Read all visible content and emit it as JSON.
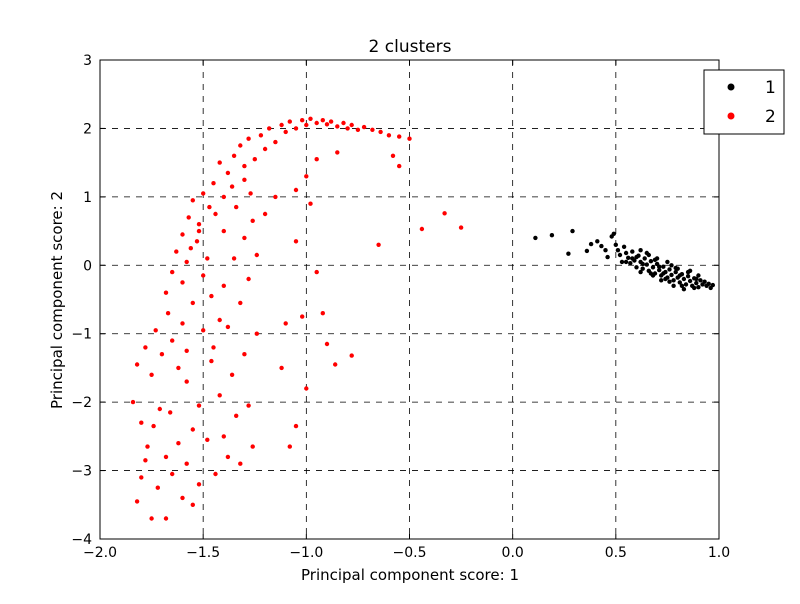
{
  "chart_data": {
    "type": "scatter",
    "title": "2 clusters",
    "xlabel": "Principal component score: 1",
    "ylabel": "Principal component score: 2",
    "xlim": [
      -2.0,
      1.0
    ],
    "ylim": [
      -4,
      3
    ],
    "x_ticks": [
      "−2.0",
      "−1.5",
      "−1.0",
      "−0.5",
      "0.0",
      "0.5",
      "1.0"
    ],
    "y_ticks": [
      "−4",
      "−3",
      "−2",
      "−1",
      "0",
      "1",
      "2",
      "3"
    ],
    "grid": true,
    "legend_position": "top-right",
    "series": [
      {
        "name": "1",
        "color": "#000000",
        "points": [
          [
            0.11,
            0.4
          ],
          [
            0.19,
            0.44
          ],
          [
            0.29,
            0.5
          ],
          [
            0.27,
            0.17
          ],
          [
            0.36,
            0.21
          ],
          [
            0.38,
            0.31
          ],
          [
            0.41,
            0.35
          ],
          [
            0.43,
            0.28
          ],
          [
            0.45,
            0.22
          ],
          [
            0.46,
            0.12
          ],
          [
            0.48,
            0.42
          ],
          [
            0.49,
            0.46
          ],
          [
            0.5,
            0.3
          ],
          [
            0.51,
            0.22
          ],
          [
            0.52,
            0.15
          ],
          [
            0.53,
            0.05
          ],
          [
            0.54,
            0.27
          ],
          [
            0.55,
            0.18
          ],
          [
            0.56,
            0.11
          ],
          [
            0.57,
            0.03
          ],
          [
            0.58,
            0.2
          ],
          [
            0.59,
            0.07
          ],
          [
            0.6,
            -0.03
          ],
          [
            0.61,
            0.14
          ],
          [
            0.62,
            0.05
          ],
          [
            0.63,
            -0.05
          ],
          [
            0.64,
            0.1
          ],
          [
            0.65,
            0.01
          ],
          [
            0.66,
            -0.08
          ],
          [
            0.67,
            0.06
          ],
          [
            0.68,
            -0.03
          ],
          [
            0.69,
            -0.12
          ],
          [
            0.7,
            0.02
          ],
          [
            0.71,
            -0.07
          ],
          [
            0.72,
            -0.15
          ],
          [
            0.73,
            -0.02
          ],
          [
            0.74,
            -0.1
          ],
          [
            0.75,
            -0.18
          ],
          [
            0.76,
            -0.06
          ],
          [
            0.77,
            -0.14
          ],
          [
            0.78,
            -0.22
          ],
          [
            0.79,
            -0.1
          ],
          [
            0.8,
            -0.18
          ],
          [
            0.81,
            -0.25
          ],
          [
            0.82,
            -0.13
          ],
          [
            0.83,
            -0.2
          ],
          [
            0.84,
            -0.28
          ],
          [
            0.85,
            -0.16
          ],
          [
            0.86,
            -0.23
          ],
          [
            0.87,
            -0.3
          ],
          [
            0.88,
            -0.19
          ],
          [
            0.89,
            -0.26
          ],
          [
            0.9,
            -0.32
          ],
          [
            0.91,
            -0.22
          ],
          [
            0.92,
            -0.28
          ],
          [
            0.93,
            -0.24
          ],
          [
            0.94,
            -0.3
          ],
          [
            0.95,
            -0.27
          ],
          [
            0.96,
            -0.33
          ],
          [
            0.97,
            -0.29
          ],
          [
            0.55,
            0.05
          ],
          [
            0.6,
            0.12
          ],
          [
            0.62,
            -0.1
          ],
          [
            0.65,
            0.18
          ],
          [
            0.68,
            -0.15
          ],
          [
            0.7,
            0.1
          ],
          [
            0.72,
            -0.22
          ],
          [
            0.75,
            0.05
          ],
          [
            0.78,
            -0.3
          ],
          [
            0.8,
            -0.05
          ],
          [
            0.83,
            -0.35
          ],
          [
            0.85,
            -0.1
          ],
          [
            0.88,
            -0.33
          ],
          [
            0.9,
            -0.15
          ],
          [
            0.62,
            0.22
          ],
          [
            0.66,
            0.15
          ],
          [
            0.71,
            -0.02
          ],
          [
            0.74,
            -0.2
          ],
          [
            0.77,
            0.0
          ],
          [
            0.81,
            -0.15
          ],
          [
            0.58,
            0.1
          ],
          [
            0.63,
            0.02
          ],
          [
            0.67,
            -0.12
          ],
          [
            0.69,
            0.08
          ],
          [
            0.73,
            -0.12
          ],
          [
            0.76,
            -0.24
          ],
          [
            0.79,
            -0.04
          ],
          [
            0.82,
            -0.3
          ],
          [
            0.86,
            -0.08
          ],
          [
            0.89,
            -0.2
          ]
        ]
      },
      {
        "name": "2",
        "color": "#ff0000",
        "points": [
          [
            -1.82,
            -3.45
          ],
          [
            -1.8,
            -3.1
          ],
          [
            -1.78,
            -2.85
          ],
          [
            -1.75,
            -3.7
          ],
          [
            -1.72,
            -3.25
          ],
          [
            -1.68,
            -3.7
          ],
          [
            -1.65,
            -3.05
          ],
          [
            -1.6,
            -3.4
          ],
          [
            -1.55,
            -3.5
          ],
          [
            -1.52,
            -3.2
          ],
          [
            -1.84,
            -2.0
          ],
          [
            -1.8,
            -2.3
          ],
          [
            -1.77,
            -2.65
          ],
          [
            -1.74,
            -2.35
          ],
          [
            -1.71,
            -2.1
          ],
          [
            -1.68,
            -2.8
          ],
          [
            -1.66,
            -2.15
          ],
          [
            -1.62,
            -2.6
          ],
          [
            -1.58,
            -2.9
          ],
          [
            -1.55,
            -2.4
          ],
          [
            -1.82,
            -1.45
          ],
          [
            -1.78,
            -1.2
          ],
          [
            -1.75,
            -1.6
          ],
          [
            -1.73,
            -0.95
          ],
          [
            -1.7,
            -1.3
          ],
          [
            -1.67,
            -0.7
          ],
          [
            -1.65,
            -1.1
          ],
          [
            -1.62,
            -1.5
          ],
          [
            -1.6,
            -0.85
          ],
          [
            -1.58,
            -1.25
          ],
          [
            -1.68,
            -0.4
          ],
          [
            -1.65,
            -0.1
          ],
          [
            -1.63,
            0.2
          ],
          [
            -1.6,
            -0.25
          ],
          [
            -1.58,
            0.05
          ],
          [
            -1.55,
            -0.55
          ],
          [
            -1.53,
            0.35
          ],
          [
            -1.5,
            -0.15
          ],
          [
            -1.48,
            0.1
          ],
          [
            -1.46,
            -0.45
          ],
          [
            -1.6,
            0.45
          ],
          [
            -1.57,
            0.7
          ],
          [
            -1.55,
            0.95
          ],
          [
            -1.52,
            0.6
          ],
          [
            -1.5,
            1.05
          ],
          [
            -1.47,
            0.85
          ],
          [
            -1.45,
            1.2
          ],
          [
            -1.42,
            1.5
          ],
          [
            -1.4,
            1.0
          ],
          [
            -1.38,
            1.35
          ],
          [
            -1.42,
            -1.9
          ],
          [
            -1.4,
            -2.5
          ],
          [
            -1.38,
            -2.8
          ],
          [
            -1.36,
            -1.6
          ],
          [
            -1.34,
            -2.2
          ],
          [
            -1.32,
            -2.9
          ],
          [
            -1.3,
            -1.3
          ],
          [
            -1.28,
            -2.05
          ],
          [
            -1.26,
            -2.65
          ],
          [
            -1.24,
            -1.0
          ],
          [
            -1.45,
            -1.2
          ],
          [
            -1.42,
            -0.8
          ],
          [
            -1.4,
            -0.3
          ],
          [
            -1.38,
            -0.9
          ],
          [
            -1.35,
            0.1
          ],
          [
            -1.32,
            -0.55
          ],
          [
            -1.3,
            0.4
          ],
          [
            -1.28,
            -0.2
          ],
          [
            -1.26,
            0.65
          ],
          [
            -1.24,
            0.15
          ],
          [
            -1.35,
            1.6
          ],
          [
            -1.32,
            1.75
          ],
          [
            -1.3,
            1.45
          ],
          [
            -1.28,
            1.85
          ],
          [
            -1.25,
            1.55
          ],
          [
            -1.22,
            1.9
          ],
          [
            -1.2,
            1.7
          ],
          [
            -1.18,
            2.0
          ],
          [
            -1.15,
            1.8
          ],
          [
            -1.12,
            2.05
          ],
          [
            -1.1,
            1.95
          ],
          [
            -1.08,
            2.1
          ],
          [
            -1.05,
            2.0
          ],
          [
            -1.02,
            2.12
          ],
          [
            -1.0,
            2.05
          ],
          [
            -0.98,
            2.14
          ],
          [
            -0.95,
            2.08
          ],
          [
            -0.92,
            2.12
          ],
          [
            -0.9,
            2.06
          ],
          [
            -0.88,
            2.1
          ],
          [
            -0.85,
            2.03
          ],
          [
            -0.82,
            2.08
          ],
          [
            -0.8,
            2.0
          ],
          [
            -0.78,
            2.05
          ],
          [
            -0.75,
            1.98
          ],
          [
            -0.72,
            2.02
          ],
          [
            -0.68,
            1.98
          ],
          [
            -0.64,
            1.95
          ],
          [
            -0.6,
            1.9
          ],
          [
            -0.55,
            1.88
          ],
          [
            -0.5,
            1.85
          ],
          [
            -0.55,
            1.45
          ],
          [
            -0.58,
            1.6
          ],
          [
            -0.85,
            1.65
          ],
          [
            -0.95,
            1.55
          ],
          [
            -1.0,
            1.3
          ],
          [
            -1.05,
            1.1
          ],
          [
            -1.15,
            1.0
          ],
          [
            -1.2,
            0.75
          ],
          [
            -1.05,
            0.35
          ],
          [
            -0.98,
            0.9
          ],
          [
            -0.95,
            -0.1
          ],
          [
            -0.92,
            -0.7
          ],
          [
            -0.9,
            -1.15
          ],
          [
            -0.86,
            -1.45
          ],
          [
            -0.78,
            -1.32
          ],
          [
            -1.05,
            -2.35
          ],
          [
            -1.0,
            -1.8
          ],
          [
            -1.02,
            -0.75
          ],
          [
            -1.08,
            -2.65
          ],
          [
            -1.1,
            -0.85
          ],
          [
            -1.12,
            -1.5
          ],
          [
            -0.65,
            0.3
          ],
          [
            -0.44,
            0.53
          ],
          [
            -0.33,
            0.76
          ],
          [
            -0.25,
            0.55
          ],
          [
            -1.58,
            -1.7
          ],
          [
            -1.52,
            -2.05
          ],
          [
            -1.48,
            -2.55
          ],
          [
            -1.44,
            -3.05
          ],
          [
            -1.5,
            -0.95
          ],
          [
            -1.46,
            -1.4
          ],
          [
            -1.56,
            0.25
          ],
          [
            -1.52,
            0.5
          ],
          [
            -1.44,
            0.75
          ],
          [
            -1.4,
            0.5
          ],
          [
            -1.36,
            1.15
          ],
          [
            -1.34,
            0.85
          ],
          [
            -1.3,
            1.25
          ],
          [
            -1.27,
            1.05
          ]
        ]
      }
    ]
  }
}
